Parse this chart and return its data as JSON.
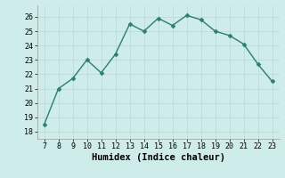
{
  "x": [
    7,
    8,
    9,
    10,
    11,
    12,
    13,
    14,
    15,
    16,
    17,
    18,
    19,
    20,
    21,
    22,
    23
  ],
  "y": [
    18.5,
    21.0,
    21.7,
    23.0,
    22.1,
    23.4,
    25.5,
    25.0,
    25.9,
    25.4,
    26.1,
    25.8,
    25.0,
    24.7,
    24.1,
    22.7,
    21.5
  ],
  "line_color": "#2e7d6e",
  "marker": "D",
  "marker_size": 2.5,
  "line_width": 1.0,
  "xlabel": "Humidex (Indice chaleur)",
  "xlim": [
    6.5,
    23.5
  ],
  "ylim": [
    17.5,
    26.8
  ],
  "yticks": [
    18,
    19,
    20,
    21,
    22,
    23,
    24,
    25,
    26
  ],
  "xticks": [
    7,
    8,
    9,
    10,
    11,
    12,
    13,
    14,
    15,
    16,
    17,
    18,
    19,
    20,
    21,
    22,
    23
  ],
  "bg_color": "#ceecea",
  "grid_color": "#b8d8d5",
  "tick_fontsize": 6,
  "xlabel_fontsize": 7.5,
  "xlabel_fontweight": "bold"
}
